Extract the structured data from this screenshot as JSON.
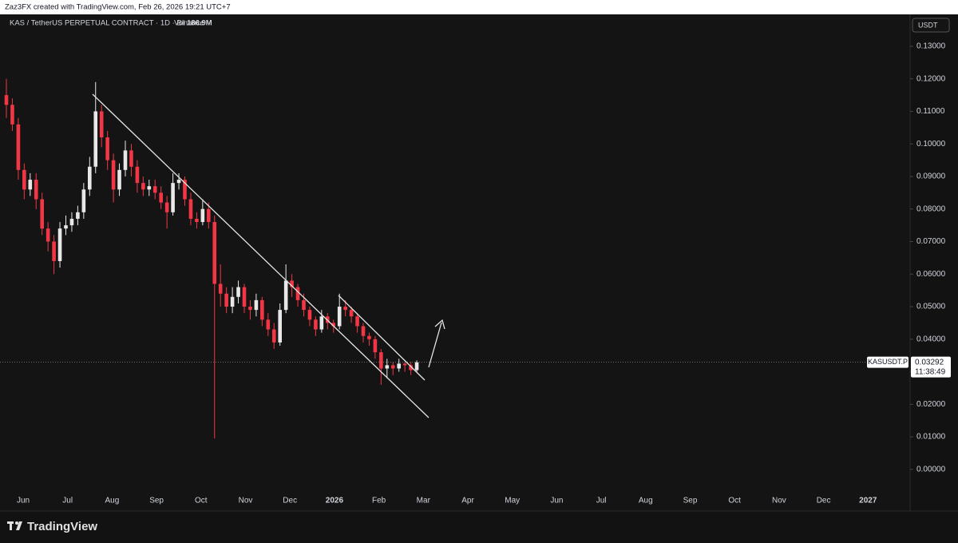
{
  "header": "Zaz3FX created with TradingView.com, Feb 26, 2026 19:21 UTC+7",
  "logo": "TradingView",
  "chart_data": {
    "type": "candlestick",
    "title": "KAS / TetherUS PERPETUAL CONTRACT · 1D · Binance",
    "volume_label": "Vol",
    "volume": "186.9M",
    "currency": "USDT",
    "price_tag": {
      "symbol": "KASUSDT.P",
      "price": "0.03292",
      "countdown": "11:38:49"
    },
    "up_color": "#e8e8e8",
    "down_color": "#f23645",
    "categories": [
      "Jun",
      "Jul",
      "Aug",
      "Sep",
      "Oct",
      "Nov",
      "Dec",
      "2026",
      "Feb",
      "Mar",
      "Apr",
      "May",
      "Jun",
      "Jul",
      "Aug",
      "Sep",
      "Oct",
      "Nov",
      "Dec",
      "2027"
    ],
    "ylim": [
      -0.0128,
      0.1398
    ],
    "yticks": [
      {
        "value": 0,
        "label": "0.00000"
      },
      {
        "value": 0.01,
        "label": "0.01000"
      },
      {
        "value": 0.02,
        "label": "0.02000"
      },
      {
        "value": 0.03,
        "label": "0.03000"
      },
      {
        "value": 0.04,
        "label": "0.04000"
      },
      {
        "value": 0.05,
        "label": "0.05000"
      },
      {
        "value": 0.06,
        "label": "0.06000"
      },
      {
        "value": 0.07,
        "label": "0.07000"
      },
      {
        "value": 0.08,
        "label": "0.08000"
      },
      {
        "value": 0.09,
        "label": "0.09000"
      },
      {
        "value": 0.1,
        "label": "0.10000"
      },
      {
        "value": 0.11,
        "label": "0.11000"
      },
      {
        "value": 0.12,
        "label": "0.12000"
      },
      {
        "value": 0.13,
        "label": "0.13000"
      }
    ],
    "open": [
      0.115,
      0.112,
      0.106,
      0.092,
      0.086,
      0.089,
      0.083,
      0.074,
      0.07,
      0.064,
      0.074,
      0.075,
      0.077,
      0.079,
      0.086,
      0.093,
      0.11,
      0.102,
      0.095,
      0.086,
      0.092,
      0.098,
      0.093,
      0.088,
      0.086,
      0.087,
      0.085,
      0.082,
      0.079,
      0.088,
      0.089,
      0.083,
      0.077,
      0.076,
      0.08,
      0.076,
      0.057,
      0.054,
      0.05,
      0.053,
      0.056,
      0.05,
      0.049,
      0.052,
      0.046,
      0.043,
      0.039,
      0.049,
      0.058,
      0.056,
      0.052,
      0.049,
      0.046,
      0.043,
      0.047,
      0.045,
      0.044,
      0.05,
      0.049,
      0.047,
      0.044,
      0.041,
      0.04,
      0.036,
      0.031,
      0.032,
      0.031,
      0.0325,
      0.032,
      0.0305
    ],
    "high": [
      0.12,
      0.114,
      0.108,
      0.094,
      0.091,
      0.091,
      0.085,
      0.076,
      0.072,
      0.076,
      0.078,
      0.079,
      0.081,
      0.088,
      0.096,
      0.119,
      0.112,
      0.104,
      0.097,
      0.094,
      0.101,
      0.1,
      0.095,
      0.09,
      0.089,
      0.089,
      0.087,
      0.084,
      0.091,
      0.091,
      0.09,
      0.085,
      0.079,
      0.083,
      0.082,
      0.078,
      0.063,
      0.056,
      0.056,
      0.058,
      0.057,
      0.052,
      0.054,
      0.053,
      0.048,
      0.045,
      0.051,
      0.063,
      0.06,
      0.057,
      0.054,
      0.05,
      0.047,
      0.049,
      0.048,
      0.046,
      0.054,
      0.052,
      0.05,
      0.048,
      0.045,
      0.042,
      0.041,
      0.037,
      0.034,
      0.033,
      0.034,
      0.033,
      0.033,
      0.0335
    ],
    "low": [
      0.108,
      0.104,
      0.089,
      0.083,
      0.084,
      0.08,
      0.072,
      0.067,
      0.06,
      0.062,
      0.072,
      0.073,
      0.075,
      0.077,
      0.084,
      0.091,
      0.099,
      0.092,
      0.082,
      0.084,
      0.09,
      0.09,
      0.085,
      0.084,
      0.084,
      0.083,
      0.08,
      0.074,
      0.078,
      0.086,
      0.081,
      0.075,
      0.074,
      0.075,
      0.074,
      0.0095,
      0.05,
      0.048,
      0.048,
      0.051,
      0.048,
      0.046,
      0.047,
      0.044,
      0.041,
      0.037,
      0.038,
      0.048,
      0.053,
      0.05,
      0.047,
      0.044,
      0.041,
      0.042,
      0.043,
      0.042,
      0.043,
      0.047,
      0.045,
      0.042,
      0.039,
      0.038,
      0.034,
      0.026,
      0.028,
      0.029,
      0.03,
      0.03,
      0.029,
      0.0298
    ],
    "close": [
      0.112,
      0.106,
      0.092,
      0.086,
      0.089,
      0.083,
      0.074,
      0.07,
      0.064,
      0.074,
      0.075,
      0.077,
      0.079,
      0.086,
      0.093,
      0.11,
      0.102,
      0.095,
      0.086,
      0.092,
      0.098,
      0.093,
      0.088,
      0.086,
      0.087,
      0.085,
      0.082,
      0.079,
      0.088,
      0.089,
      0.083,
      0.077,
      0.076,
      0.08,
      0.076,
      0.057,
      0.054,
      0.05,
      0.053,
      0.056,
      0.05,
      0.049,
      0.052,
      0.046,
      0.043,
      0.039,
      0.049,
      0.058,
      0.056,
      0.052,
      0.049,
      0.046,
      0.043,
      0.047,
      0.045,
      0.044,
      0.05,
      0.049,
      0.047,
      0.044,
      0.041,
      0.04,
      0.036,
      0.031,
      0.032,
      0.031,
      0.0325,
      0.032,
      0.0305,
      0.03292
    ]
  }
}
